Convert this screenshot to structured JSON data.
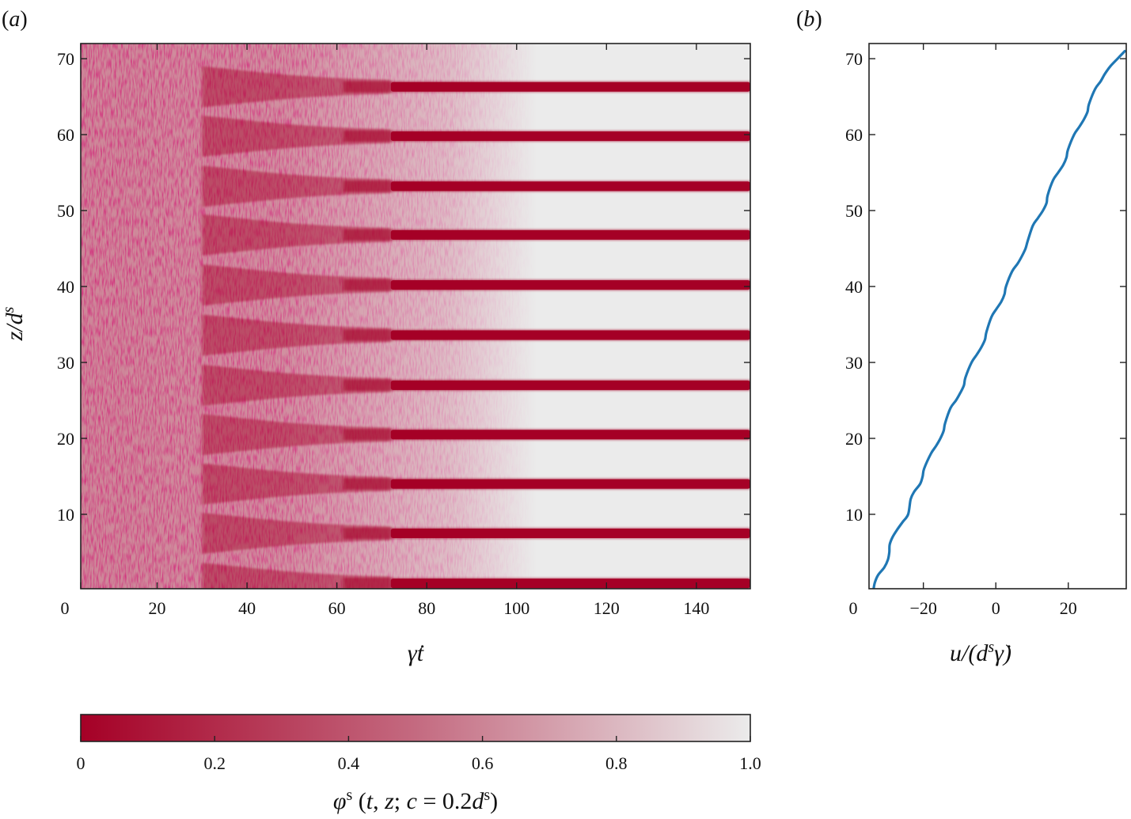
{
  "chart_data": [
    {
      "panel": "(a)",
      "panel_letter": "a",
      "type": "heatmap",
      "xlabel": "γ̇t",
      "ylabel": "z/d^s",
      "xlim": [
        3,
        152
      ],
      "ylim": [
        0.2,
        72
      ],
      "xticks": [
        0,
        20,
        40,
        60,
        80,
        100,
        120,
        140
      ],
      "yticks": [
        10,
        20,
        30,
        40,
        50,
        60,
        70
      ],
      "stripe_z_centers": [
        0.9,
        7.5,
        14.0,
        20.5,
        27.0,
        33.6,
        40.2,
        46.8,
        53.2,
        59.8,
        66.3
      ],
      "stripe_onset_t": 72,
      "mixed_until_t": 30,
      "colormap": {
        "low_color": "#a50026",
        "high_color": "#ebebeb"
      },
      "colorbar": {
        "label_parts": [
          "φ",
          "s",
          " (",
          "t",
          ", ",
          "z",
          "; ",
          "c",
          " = 0.2",
          "d",
          "s",
          ")"
        ],
        "ticks": [
          "0",
          "0.2",
          "0.4",
          "0.6",
          "0.8",
          "1.0"
        ],
        "range": [
          0,
          1.0
        ]
      }
    },
    {
      "panel": "(b)",
      "panel_letter": "b",
      "type": "line",
      "xlabel": "u/(d^s γ̇)",
      "ylabel": "",
      "xlim": [
        -35,
        36
      ],
      "ylim": [
        0.2,
        72
      ],
      "xticks": [
        -20,
        0,
        20
      ],
      "xtick_labels": [
        "−20",
        "0",
        "20"
      ],
      "yticks": [
        10,
        20,
        30,
        40,
        50,
        60,
        70
      ],
      "corner_label": "0",
      "line_color": "#1f77b4",
      "series": [
        {
          "z": [
            0,
            1,
            2,
            3,
            4,
            5,
            6,
            7,
            8,
            9,
            10,
            12,
            13,
            14,
            15,
            16,
            18,
            19,
            20,
            21,
            22,
            24,
            25,
            26,
            27,
            28,
            30,
            31,
            32,
            33,
            34,
            36,
            37,
            38,
            39,
            40,
            42,
            43,
            44,
            45,
            46,
            48,
            49,
            50,
            51,
            52,
            54,
            55,
            56,
            57,
            58,
            60,
            61,
            62,
            63,
            64,
            66,
            67,
            68,
            69,
            70,
            71
          ],
          "u": [
            -33.8,
            -33.4,
            -32.5,
            -30.8,
            -29.8,
            -29.4,
            -29.3,
            -28.5,
            -27.2,
            -25.7,
            -24.2,
            -23.5,
            -22.5,
            -20.9,
            -20.2,
            -19.8,
            -17.9,
            -16.5,
            -15.3,
            -14.4,
            -14.0,
            -12.5,
            -11.0,
            -9.8,
            -8.8,
            -8.4,
            -6.7,
            -5.3,
            -4.0,
            -3.0,
            -2.6,
            -1.2,
            0.1,
            1.5,
            2.4,
            2.8,
            4.5,
            6.0,
            7.2,
            8.2,
            8.8,
            10.2,
            11.6,
            13.0,
            14.0,
            14.3,
            15.8,
            17.2,
            18.6,
            19.5,
            19.9,
            21.6,
            23.0,
            24.3,
            25.3,
            25.7,
            27.4,
            28.9,
            30.1,
            31.6,
            33.6,
            35.6
          ]
        }
      ]
    }
  ]
}
